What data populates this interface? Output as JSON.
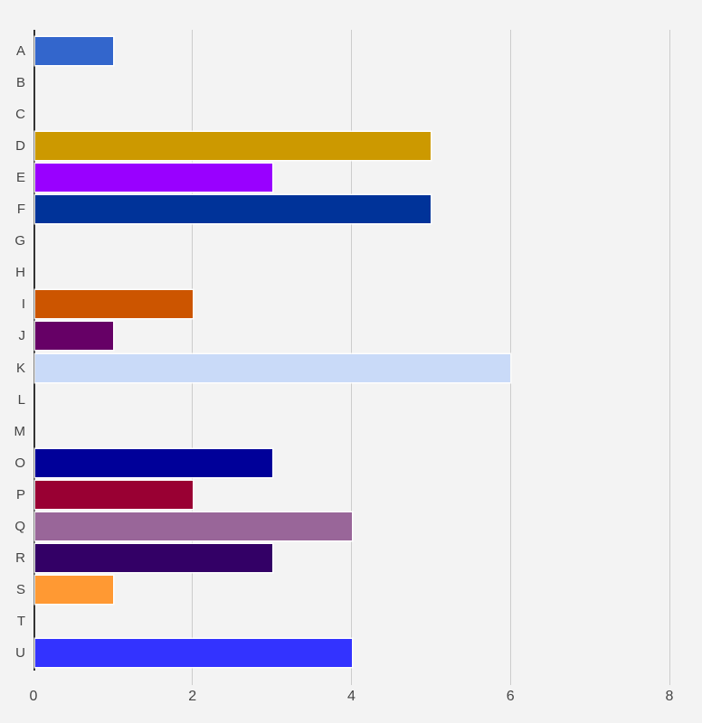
{
  "chart_data": {
    "type": "bar",
    "orientation": "horizontal",
    "title": "",
    "xlabel": "",
    "ylabel": "",
    "categories": [
      "A",
      "B",
      "C",
      "D",
      "E",
      "F",
      "G",
      "H",
      "I",
      "J",
      "K",
      "L",
      "M",
      "O",
      "P",
      "Q",
      "R",
      "S",
      "T",
      "U"
    ],
    "values": [
      1,
      0,
      0,
      5,
      3,
      5,
      0,
      0,
      2,
      1,
      6,
      0,
      0,
      3,
      2,
      4,
      3,
      1,
      0,
      4
    ],
    "bar_colors": [
      "#3366CC",
      "",
      "",
      "#CC9900",
      "#9900FF",
      "#003399",
      "",
      "",
      "#CC5500",
      "#660066",
      "#C9DAF8",
      "",
      "",
      "#000099",
      "#990033",
      "#996699",
      "#330066",
      "#FF9933",
      "",
      "#3333FF"
    ],
    "xlim": [
      0,
      8
    ],
    "x_ticks": [
      0,
      2,
      4,
      6,
      8
    ],
    "grid": true,
    "legend": "none",
    "colors": {
      "background": "#F3F3F3",
      "gridline": "#CCCCCC",
      "axis_line": "#333333",
      "tick_label": "#444444",
      "category_label": "#444444"
    }
  }
}
